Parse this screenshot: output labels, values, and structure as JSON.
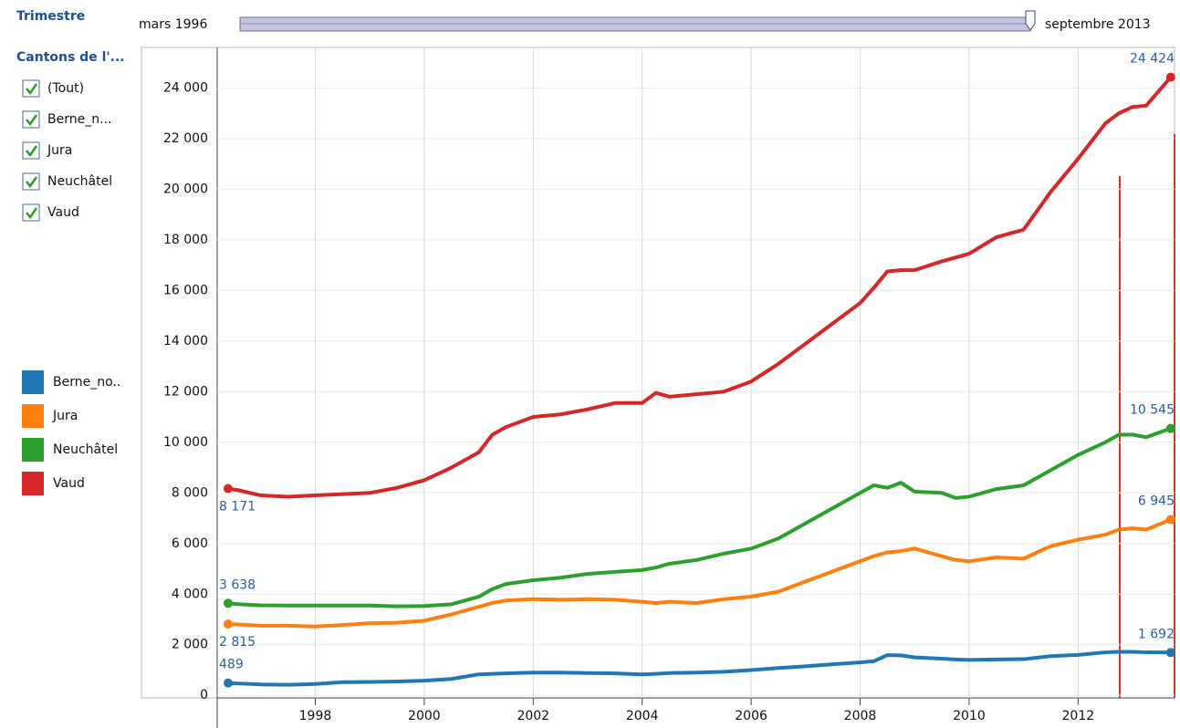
{
  "controls": {
    "period_label": "Trimestre",
    "start": "mars 1996",
    "end": "septembre 2013",
    "filter_title": "Cantons de l'...",
    "filter_items": [
      "(Tout)",
      "Berne_n...",
      "Jura",
      "Neuchâtel",
      "Vaud"
    ]
  },
  "chart_data": {
    "type": "line",
    "x": [
      1996.4,
      1996.6,
      1997,
      1997.5,
      1998,
      1998.5,
      1999,
      1999.5,
      2000,
      2000.5,
      2001,
      2001.25,
      2001.5,
      2002,
      2002.5,
      2003,
      2003.5,
      2004,
      2004.25,
      2004.5,
      2005,
      2005.5,
      2006,
      2006.5,
      2007,
      2007.5,
      2008,
      2008.25,
      2008.5,
      2008.75,
      2009,
      2009.5,
      2009.75,
      2010,
      2010.5,
      2011,
      2011.5,
      2012,
      2012.5,
      2012.75,
      2013,
      2013.25,
      2013.7
    ],
    "series": [
      {
        "name": "Berne_no..",
        "color": "#1f77b4",
        "values": [
          489,
          470,
          430,
          420,
          450,
          520,
          530,
          550,
          580,
          650,
          830,
          850,
          870,
          900,
          900,
          880,
          870,
          830,
          850,
          880,
          900,
          930,
          1000,
          1080,
          1150,
          1230,
          1300,
          1350,
          1590,
          1580,
          1500,
          1450,
          1420,
          1400,
          1420,
          1430,
          1550,
          1600,
          1700,
          1720,
          1720,
          1700,
          1692
        ],
        "value_labels": [
          "489",
          null,
          null,
          null,
          null,
          null,
          null,
          null,
          null,
          null,
          null,
          null,
          null,
          null,
          null,
          null,
          null,
          null,
          null,
          null,
          null,
          null,
          null,
          null,
          null,
          null,
          null,
          null,
          null,
          null,
          null,
          null,
          null,
          null,
          null,
          null,
          null,
          null,
          null,
          null,
          null,
          null,
          "1 692"
        ]
      },
      {
        "name": "Jura",
        "color": "#ff7f0e",
        "values": [
          2815,
          2800,
          2750,
          2750,
          2720,
          2780,
          2850,
          2870,
          2950,
          3200,
          3500,
          3650,
          3750,
          3800,
          3780,
          3800,
          3780,
          3700,
          3650,
          3700,
          3650,
          3800,
          3900,
          4100,
          4500,
          4900,
          5300,
          5500,
          5650,
          5700,
          5800,
          5500,
          5350,
          5300,
          5450,
          5400,
          5900,
          6150,
          6350,
          6550,
          6600,
          6550,
          6945
        ],
        "value_labels": [
          "2 815",
          null,
          null,
          null,
          null,
          null,
          null,
          null,
          null,
          null,
          null,
          null,
          null,
          null,
          null,
          null,
          null,
          null,
          null,
          null,
          null,
          null,
          null,
          null,
          null,
          null,
          null,
          null,
          null,
          null,
          null,
          null,
          null,
          null,
          null,
          null,
          null,
          null,
          null,
          null,
          null,
          null,
          "6 945"
        ]
      },
      {
        "name": "Neuchâtel",
        "color": "#2ca02c",
        "values": [
          3638,
          3600,
          3560,
          3550,
          3550,
          3550,
          3550,
          3520,
          3530,
          3600,
          3900,
          4200,
          4400,
          4550,
          4650,
          4800,
          4880,
          4950,
          5050,
          5200,
          5350,
          5600,
          5800,
          6200,
          6800,
          7400,
          8000,
          8300,
          8200,
          8400,
          8050,
          8000,
          7800,
          7850,
          8150,
          8300,
          8900,
          9500,
          10000,
          10300,
          10300,
          10200,
          10545
        ],
        "value_labels": [
          "3 638",
          null,
          null,
          null,
          null,
          null,
          null,
          null,
          null,
          null,
          null,
          null,
          null,
          null,
          null,
          null,
          null,
          null,
          null,
          null,
          null,
          null,
          null,
          null,
          null,
          null,
          null,
          null,
          null,
          null,
          null,
          null,
          null,
          null,
          null,
          null,
          null,
          null,
          null,
          null,
          null,
          null,
          "10 545"
        ]
      },
      {
        "name": "Vaud",
        "color": "#d62728",
        "values": [
          8171,
          8100,
          7900,
          7850,
          7900,
          7950,
          8000,
          8200,
          8500,
          9000,
          9600,
          10300,
          10600,
          11000,
          11100,
          11300,
          11550,
          11550,
          11950,
          11800,
          11900,
          12000,
          12400,
          13100,
          13900,
          14700,
          15500,
          16100,
          16750,
          16800,
          16800,
          17150,
          17300,
          17450,
          18100,
          18400,
          19900,
          21200,
          22600,
          23000,
          23250,
          23300,
          24424
        ],
        "value_labels": [
          "8 171",
          null,
          null,
          null,
          null,
          null,
          null,
          null,
          null,
          null,
          null,
          null,
          null,
          null,
          null,
          null,
          null,
          null,
          null,
          null,
          null,
          null,
          null,
          null,
          null,
          null,
          null,
          null,
          null,
          null,
          null,
          null,
          null,
          null,
          null,
          null,
          null,
          null,
          null,
          null,
          null,
          null,
          "24 424"
        ]
      }
    ],
    "xlim": [
      1996.2,
      2013.77
    ],
    "xticks": [
      1998,
      2000,
      2002,
      2004,
      2006,
      2008,
      2010,
      2012
    ],
    "ylim": [
      -100,
      25600
    ],
    "yticks": [
      0,
      {
        "value": 2000,
        "label": "2 000"
      },
      {
        "value": 4000,
        "label": "4 000"
      },
      {
        "value": 6000,
        "label": "6 000"
      },
      {
        "value": 8000,
        "label": "8 000"
      },
      {
        "value": 10000,
        "label": "10 000"
      },
      {
        "value": 12000,
        "label": "12 000"
      },
      {
        "value": 14000,
        "label": "14 000"
      },
      {
        "value": 16000,
        "label": "16 000"
      },
      {
        "value": 18000,
        "label": "18 000"
      },
      {
        "value": 20000,
        "label": "20 000"
      },
      {
        "value": 22000,
        "label": "22 000"
      },
      {
        "value": 24000,
        "label": "24 000"
      }
    ],
    "grid": true,
    "legend": "left"
  }
}
